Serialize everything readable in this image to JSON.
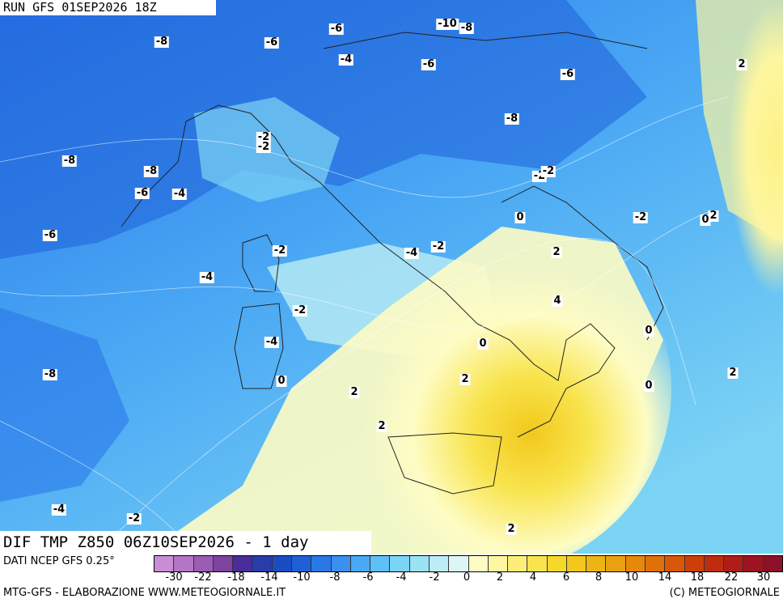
{
  "header": {
    "run_title": "RUN GFS 01SEP2026 18Z"
  },
  "footer_title": "DIF TMP Z850 06Z10SEP2026 - 1 day",
  "data_source": "DATI NCEP GFS 0.25°",
  "credits": {
    "left": "MTG-GFS - ELABORAZIONE WWW.METEOGIORNALE.IT",
    "right": "(C) METEOGIORNALE"
  },
  "colorbar": {
    "ticks": [
      "-30",
      "-22",
      "-18",
      "-14",
      "-10",
      "-8",
      "-6",
      "-4",
      "-2",
      "0",
      "2",
      "4",
      "6",
      "8",
      "10",
      "14",
      "18",
      "22",
      "30"
    ],
    "colors": [
      "#c88ed4",
      "#b276c4",
      "#9a5cb4",
      "#7e44a0",
      "#4a2c9a",
      "#2a3ca8",
      "#1a4cc4",
      "#1f60d8",
      "#2a78e8",
      "#3a90f0",
      "#4aa8f4",
      "#5ec0f4",
      "#7cd4f4",
      "#9ae2f4",
      "#bcecf4",
      "#dcf6f4",
      "#fefcc4",
      "#fef6a0",
      "#fcee78",
      "#f8e44e",
      "#f6d82a",
      "#f2c81c",
      "#eeb414",
      "#eaa010",
      "#e6880c",
      "#e0700a",
      "#d85808",
      "#cc4008",
      "#c02c0e",
      "#b01c18",
      "#9c1422",
      "#8c102a"
    ],
    "colors_note": ""
  },
  "map": {
    "contour_labels": [
      {
        "text": "-8"
      },
      {
        "text": "-6"
      },
      {
        "text": "-6"
      },
      {
        "text": "-10"
      },
      {
        "text": "-8"
      },
      {
        "text": "-4"
      },
      {
        "text": "-6"
      },
      {
        "text": "-6"
      },
      {
        "text": "-8"
      },
      {
        "text": "-8"
      },
      {
        "text": "-2"
      },
      {
        "text": "-2"
      },
      {
        "text": "-8"
      },
      {
        "text": "-6"
      },
      {
        "text": "-4"
      },
      {
        "text": "-2"
      },
      {
        "text": "2"
      },
      {
        "text": "-2"
      },
      {
        "text": "0"
      },
      {
        "text": "-2"
      },
      {
        "text": "0"
      },
      {
        "text": "2"
      },
      {
        "text": "-6"
      },
      {
        "text": "-2"
      },
      {
        "text": "-4"
      },
      {
        "text": "-2"
      },
      {
        "text": "2"
      },
      {
        "text": "-4"
      },
      {
        "text": "4"
      },
      {
        "text": "-2"
      },
      {
        "text": "0"
      },
      {
        "text": "-4"
      },
      {
        "text": "0"
      },
      {
        "text": "2"
      },
      {
        "text": "-8"
      },
      {
        "text": "0"
      },
      {
        "text": "2"
      },
      {
        "text": "0"
      },
      {
        "text": "2"
      },
      {
        "text": "-4"
      },
      {
        "text": "-2"
      },
      {
        "text": "2"
      },
      {
        "text": "2"
      }
    ]
  }
}
